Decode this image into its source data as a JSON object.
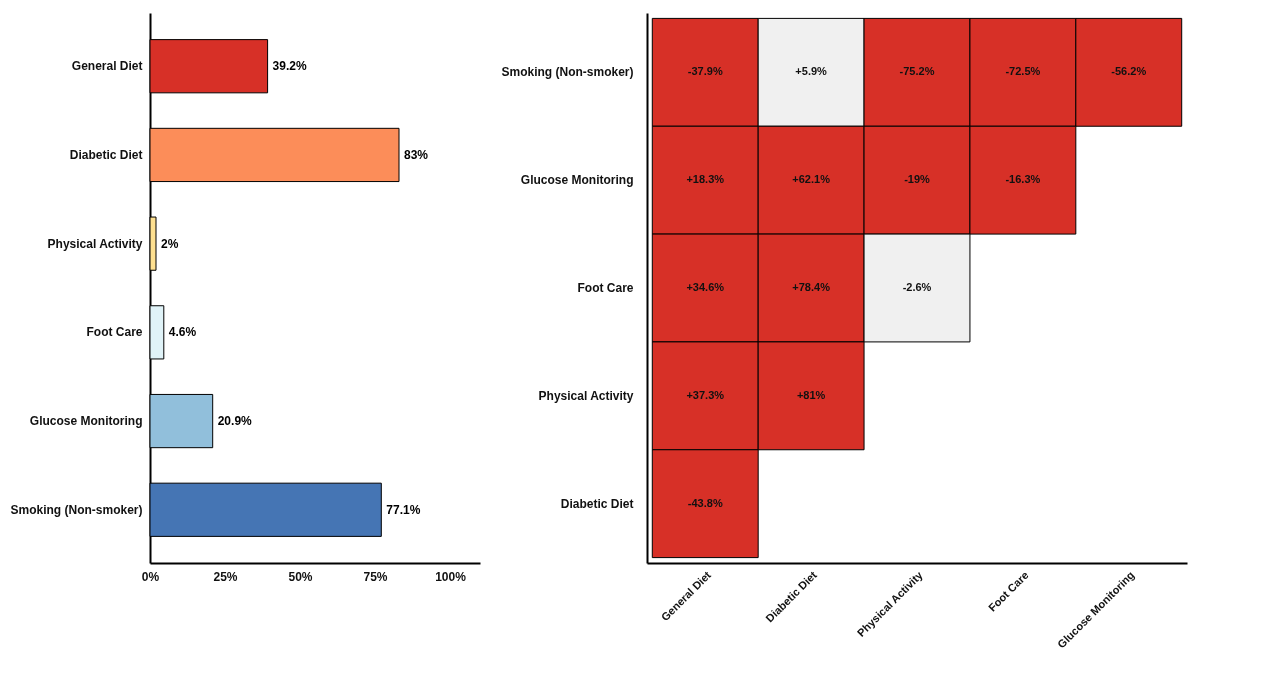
{
  "chart_data": [
    {
      "type": "bar",
      "orientation": "horizontal",
      "categories": [
        "General Diet",
        "Diabetic Diet",
        "Physical Activity",
        "Foot Care",
        "Glucose Monitoring",
        "Smoking (Non-smoker)"
      ],
      "values": [
        39.2,
        83,
        2,
        4.6,
        20.9,
        77.1
      ],
      "colors": [
        "#d73027",
        "#fc8d59",
        "#fee090",
        "#e0f3f8",
        "#91bfdb",
        "#4575b4"
      ],
      "value_labels": [
        "39.2%",
        "83%",
        "2%",
        "4.6%",
        "20.9%",
        "77.1%"
      ],
      "xlim": [
        0,
        110
      ],
      "xticks": [
        {
          "value": 0,
          "label": "0%"
        },
        {
          "value": 25,
          "label": "25%"
        },
        {
          "value": 50,
          "label": "50%"
        },
        {
          "value": 75,
          "label": "75%"
        },
        {
          "value": 100,
          "label": "100%"
        }
      ],
      "grid": false
    },
    {
      "type": "heatmap",
      "categories": [
        "General Diet",
        "Diabetic Diet",
        "Physical Activity",
        "Foot Care",
        "Glucose Monitoring"
      ],
      "y_categories": [
        "Smoking (Non-smoker)",
        "Glucose Monitoring",
        "Foot Care",
        "Physical Activity",
        "Diabetic Diet"
      ],
      "cells": [
        [
          -37.9,
          5.9,
          -75.2,
          -72.5,
          -56.2
        ],
        [
          18.3,
          62.1,
          -19,
          -16.3,
          null
        ],
        [
          34.6,
          78.4,
          -2.6,
          null,
          null
        ],
        [
          37.3,
          81,
          null,
          null,
          null
        ],
        [
          -43.8,
          null,
          null,
          null,
          null
        ]
      ],
      "cell_labels": [
        [
          "-37.9%",
          "+5.9%",
          "-75.2%",
          "-72.5%",
          "-56.2%"
        ],
        [
          "+18.3%",
          "+62.1%",
          "-19%",
          "-16.3%",
          null
        ],
        [
          "+34.6%",
          "+78.4%",
          "-2.6%",
          null,
          null
        ],
        [
          "+37.3%",
          "+81%",
          null,
          null,
          null
        ],
        [
          "-43.8%",
          null,
          null,
          null,
          null
        ]
      ],
      "colors": [
        [
          "#d73027",
          "#f0f0f0",
          "#d73027",
          "#d73027",
          "#d73027"
        ],
        [
          "#d73027",
          "#d73027",
          "#d73027",
          "#d73027",
          null
        ],
        [
          "#d73027",
          "#d73027",
          "#f0f0f0",
          null,
          null
        ],
        [
          "#d73027",
          "#d73027",
          null,
          null,
          null
        ],
        [
          "#d73027",
          null,
          null,
          null,
          null
        ]
      ]
    }
  ]
}
